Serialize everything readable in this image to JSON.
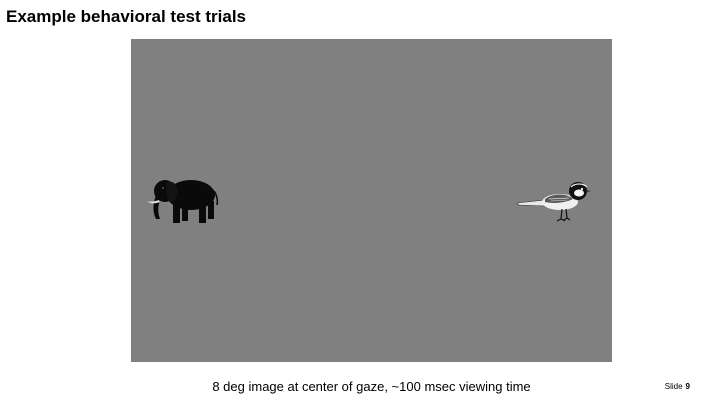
{
  "slide": {
    "title": "Example behavioral test trials",
    "caption": "8 deg image at center of gaze, ~100 msec viewing time",
    "slide_label": "Slide",
    "slide_number": "9"
  },
  "stimulus": {
    "background_color": "#808080",
    "images": [
      {
        "icon": "elephant-icon",
        "position": "left"
      },
      {
        "icon": "bird-icon",
        "position": "right"
      }
    ]
  }
}
